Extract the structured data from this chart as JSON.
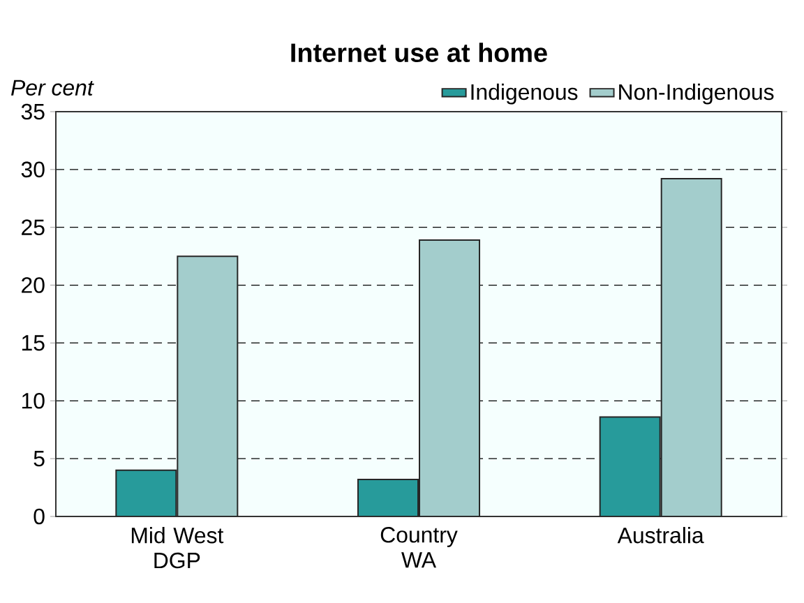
{
  "chart_data": {
    "type": "bar",
    "title": "Internet use at home",
    "ylabel": "Per cent",
    "categories": [
      "Mid West DGP",
      "Country WA",
      "Australia"
    ],
    "series": [
      {
        "name": "Indigenous",
        "color": "#279b9b",
        "values": [
          4.0,
          3.2,
          8.6
        ]
      },
      {
        "name": "Non-Indigenous",
        "color": "#a3cdcc",
        "values": [
          22.5,
          23.9,
          29.2
        ]
      }
    ],
    "ylim": [
      0,
      35
    ],
    "yticks": [
      0,
      5,
      10,
      15,
      20,
      25,
      30,
      35
    ],
    "grid": "y",
    "legend": "top right"
  }
}
